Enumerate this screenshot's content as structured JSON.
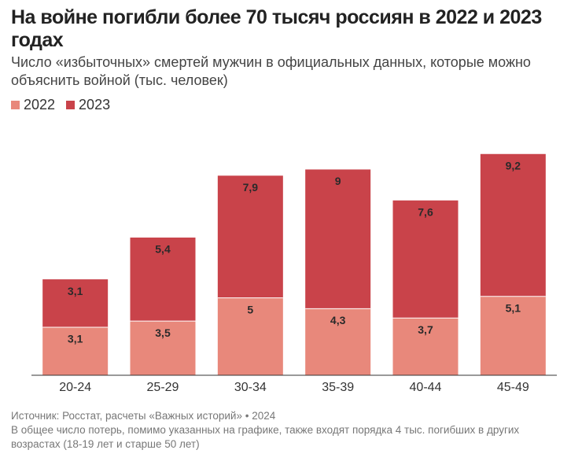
{
  "chart_data": {
    "type": "stacked_bar",
    "title": "На войне погибли более 70 тысяч россиян в 2022 и 2023 годах",
    "subtitle": "Число «избыточных» смертей мужчин в официальных данных, которые можно объяснить войной (тыс. человек)",
    "categories": [
      "20-24",
      "25-29",
      "30-34",
      "35-39",
      "40-44",
      "45-49"
    ],
    "series": [
      {
        "name": "2022",
        "color": "#e8887b",
        "values": [
          3.1,
          3.5,
          5,
          4.3,
          3.7,
          5.1
        ],
        "value_labels": [
          "3,1",
          "3,5",
          "5",
          "4,3",
          "3,7",
          "5,1"
        ]
      },
      {
        "name": "2023",
        "color": "#c9434a",
        "values": [
          3.1,
          5.4,
          7.9,
          9,
          7.6,
          9.2
        ],
        "value_labels": [
          "3,1",
          "5,4",
          "7,9",
          "9",
          "7,6",
          "9,2"
        ]
      }
    ],
    "ylim": [
      0,
      15
    ],
    "source": "Источник: Росстат, расчеты «Важных историй» • 2024",
    "note": "В общее число потерь, помимо указанных на графике, также входят порядка 4 тыс. погибших в других возрастах (18-19 лет и старше 50 лет)"
  }
}
